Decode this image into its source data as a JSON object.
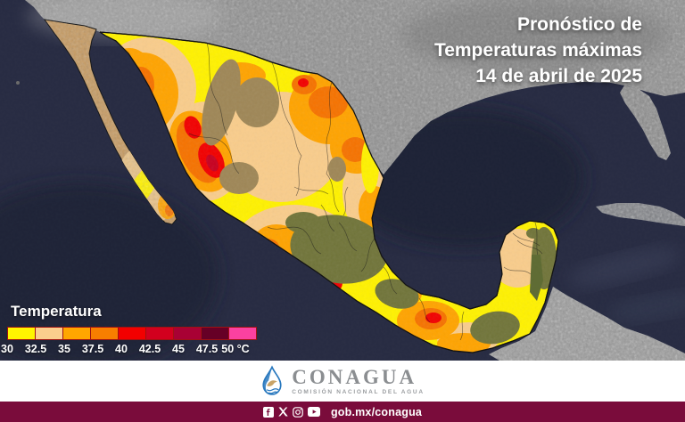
{
  "title": {
    "lines": [
      "Pronóstico de",
      "Temperaturas máximas",
      "14 de abril de 2025"
    ]
  },
  "legend": {
    "title": "Temperatura",
    "unit": "°C",
    "stops": [
      {
        "label": "30",
        "color": "#FFF500"
      },
      {
        "label": "32.5",
        "color": "#FBCE8D"
      },
      {
        "label": "35",
        "color": "#FFA600"
      },
      {
        "label": "37.5",
        "color": "#F87E00"
      },
      {
        "label": "40",
        "color": "#F30000"
      },
      {
        "label": "42.5",
        "color": "#D2001E"
      },
      {
        "label": "45",
        "color": "#A80134"
      },
      {
        "label": "47.5",
        "color": "#660026"
      },
      {
        "label": "50",
        "color": "#FB41A0"
      }
    ]
  },
  "footer": {
    "logo": {
      "name": "CONAGUA",
      "subtitle": "COMISIÓN NACIONAL DEL AGUA"
    },
    "bar": {
      "link": "gob.mx/conagua",
      "icons": [
        "facebook-icon",
        "x-icon",
        "instagram-icon",
        "youtube-icon"
      ]
    }
  },
  "colors": {
    "bar_maroon": "#7A0C3B",
    "ocean": "#272B42",
    "us_land_gray": "#8F8F8F",
    "terrain_brown": "#9F8757",
    "terrain_olive": "#71753A",
    "logo_blue": "#2878BE",
    "logo_gray": "#8B8E91"
  }
}
